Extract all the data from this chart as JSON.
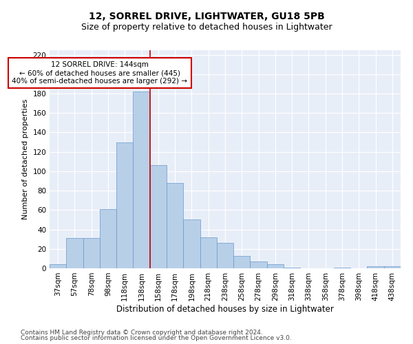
{
  "title1": "12, SORREL DRIVE, LIGHTWATER, GU18 5PB",
  "title2": "Size of property relative to detached houses in Lightwater",
  "xlabel": "Distribution of detached houses by size in Lightwater",
  "ylabel": "Number of detached properties",
  "categories": [
    "37sqm",
    "57sqm",
    "78sqm",
    "98sqm",
    "118sqm",
    "138sqm",
    "158sqm",
    "178sqm",
    "198sqm",
    "218sqm",
    "238sqm",
    "258sqm",
    "278sqm",
    "298sqm",
    "318sqm",
    "338sqm",
    "358sqm",
    "378sqm",
    "398sqm",
    "418sqm",
    "438sqm"
  ],
  "values": [
    4,
    31,
    31,
    61,
    130,
    182,
    106,
    88,
    50,
    32,
    26,
    13,
    7,
    4,
    1,
    0,
    0,
    1,
    0,
    2,
    2
  ],
  "bar_color": "#b8cfe8",
  "bar_edge_color": "#6699cc",
  "bar_width": 1.0,
  "vline_x": 5.5,
  "vline_color": "#cc0000",
  "annotation_line1": "12 SORREL DRIVE: 144sqm",
  "annotation_line2": "← 60% of detached houses are smaller (445)",
  "annotation_line3": "40% of semi-detached houses are larger (292) →",
  "box_edge_color": "#cc0000",
  "ylim": [
    0,
    225
  ],
  "yticks": [
    0,
    20,
    40,
    60,
    80,
    100,
    120,
    140,
    160,
    180,
    200,
    220
  ],
  "background_color": "#e8eef8",
  "footer1": "Contains HM Land Registry data © Crown copyright and database right 2024.",
  "footer2": "Contains public sector information licensed under the Open Government Licence v3.0.",
  "title1_fontsize": 10,
  "title2_fontsize": 9,
  "xlabel_fontsize": 8.5,
  "ylabel_fontsize": 8,
  "tick_fontsize": 7.5,
  "annotation_fontsize": 7.5,
  "footer_fontsize": 6.5
}
